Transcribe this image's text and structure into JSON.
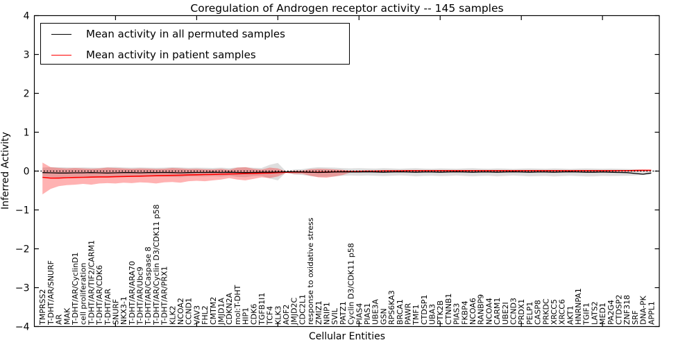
{
  "chart_data": {
    "type": "line",
    "title": "Coregulation of Androgen receptor activity -- 145 samples",
    "xlabel": "Cellular Entities",
    "ylabel": "Inferred Activity",
    "ylim": [
      -4,
      4
    ],
    "yticks": [
      -4,
      -3,
      -2,
      -1,
      0,
      1,
      2,
      3,
      4
    ],
    "x_major_tick_positions": [
      10,
      20,
      30,
      40,
      50,
      60,
      70
    ],
    "grid": false,
    "legend": {
      "position": "upper left",
      "entries": [
        {
          "label": "Mean activity in all permuted samples",
          "color": "#000000"
        },
        {
          "label": "Mean activity in patient samples",
          "color": "#ff0000"
        }
      ]
    },
    "reference_line": {
      "y": 0,
      "style": "dotted",
      "color": "#000000"
    },
    "colors": {
      "patient_line": "#ff0000",
      "permuted_line": "#000000",
      "patient_band": "rgba(255,0,0,0.30)",
      "permuted_band": "rgba(0,0,0,0.13)"
    },
    "categories": [
      "TMPRSS2",
      "T-DHT/AR/SNURF",
      "AR",
      "MAK",
      "T-DHT/AR/CyclinD1",
      "cell proliferation",
      "T-DHT/AR/TIF2/CARM1",
      "T-DHT/AR/CDK6",
      "T-DHT/AR",
      "SNURF",
      "NKX3-1",
      "T-DHT/AR/ARA70",
      "T-DHT/AR/Ubc9",
      "T-DHT/AR/Caspase 8",
      "T-DHT/AR/Cyclin D3/CDK11 p58",
      "T-DHT/AR/PRX1",
      "KLK2",
      "NCOA2",
      "CCND1",
      "VAV3",
      "FHL2",
      "CMTM2",
      "JMJD1A",
      "CDKN2A",
      "mol:T-DHT",
      "HIP1",
      "CDK6",
      "TGFB1I1",
      "TCF4",
      "KLK3",
      "AOF2",
      "JMJD2C",
      "CDC2L1",
      "response to oxidative stress",
      "ZMIZ1",
      "NRIP1",
      "SVIL",
      "PATZ1",
      "Cyclin D3/CDK11 p58",
      "PIAS4",
      "PIAS1",
      "UBE3A",
      "GSN",
      "RPS6KA3",
      "BRCA1",
      "PAWR",
      "TMF1",
      "CTDSP1",
      "UBA3",
      "PTK2B",
      "CTNNB1",
      "PIAS3",
      "FKBP4",
      "NCOA6",
      "RANBP9",
      "NCOA4",
      "CARM1",
      "UBE2I",
      "CCND3",
      "PRDX1",
      "PELP1",
      "CASP8",
      "PRKDC",
      "XRCC5",
      "XRCC6",
      "AKT1",
      "HNRNPA1",
      "TGIF1",
      "LATS2",
      "MED1",
      "PA2G4",
      "CTDSP2",
      "ZNF318",
      "SRF",
      "DNA-PK",
      "APPL1"
    ],
    "series": [
      {
        "name": "Mean activity in all permuted samples",
        "style": "solid",
        "color": "#000000",
        "values": [
          -0.04,
          -0.045,
          -0.05,
          -0.05,
          -0.045,
          -0.045,
          -0.04,
          -0.045,
          -0.05,
          -0.045,
          -0.04,
          -0.04,
          -0.045,
          -0.04,
          -0.04,
          -0.035,
          -0.04,
          -0.045,
          -0.04,
          -0.035,
          -0.035,
          -0.03,
          -0.035,
          -0.03,
          -0.035,
          -0.04,
          -0.035,
          -0.03,
          -0.03,
          -0.025,
          -0.02,
          -0.02,
          -0.025,
          -0.03,
          -0.035,
          -0.03,
          -0.025,
          -0.02,
          -0.025,
          -0.025,
          -0.02,
          -0.025,
          -0.03,
          -0.025,
          -0.02,
          -0.025,
          -0.03,
          -0.025,
          -0.025,
          -0.03,
          -0.025,
          -0.02,
          -0.025,
          -0.03,
          -0.025,
          -0.025,
          -0.03,
          -0.025,
          -0.02,
          -0.025,
          -0.03,
          -0.025,
          -0.025,
          -0.03,
          -0.025,
          -0.02,
          -0.025,
          -0.03,
          -0.03,
          -0.025,
          -0.03,
          -0.035,
          -0.04,
          -0.06,
          -0.08,
          -0.05
        ]
      },
      {
        "name": "Mean activity in patient samples",
        "style": "solid",
        "color": "#ff0000",
        "values": [
          -0.16,
          -0.18,
          -0.18,
          -0.17,
          -0.165,
          -0.16,
          -0.155,
          -0.15,
          -0.15,
          -0.145,
          -0.14,
          -0.135,
          -0.13,
          -0.125,
          -0.12,
          -0.115,
          -0.11,
          -0.105,
          -0.1,
          -0.095,
          -0.09,
          -0.085,
          -0.08,
          -0.075,
          -0.07,
          -0.065,
          -0.06,
          -0.055,
          -0.05,
          -0.04,
          -0.03,
          -0.025,
          -0.025,
          -0.03,
          -0.03,
          -0.025,
          -0.02,
          -0.015,
          -0.01,
          -0.005,
          0.0,
          0.0,
          0.005,
          0.005,
          0.005,
          0.01,
          0.01,
          0.01,
          0.01,
          0.01,
          0.01,
          0.01,
          0.01,
          0.01,
          0.01,
          0.01,
          0.01,
          0.01,
          0.01,
          0.01,
          0.01,
          0.01,
          0.01,
          0.01,
          0.01,
          0.01,
          0.01,
          0.01,
          0.01,
          0.01,
          0.01,
          0.01,
          0.01,
          0.015,
          0.02,
          0.02
        ]
      }
    ],
    "bands": [
      {
        "name": "Permuted samples spread",
        "color": "rgba(0,0,0,0.13)",
        "upper": [
          0.09,
          0.1,
          0.1,
          0.095,
          0.09,
          0.095,
          0.09,
          0.085,
          0.1,
          0.105,
          0.095,
          0.09,
          0.095,
          0.09,
          0.085,
          0.09,
          0.1,
          0.095,
          0.085,
          0.09,
          0.085,
          0.08,
          0.09,
          0.075,
          0.095,
          0.1,
          0.085,
          0.08,
          0.16,
          0.21,
          -0.005,
          0.04,
          0.05,
          0.08,
          0.1,
          0.095,
          0.09,
          0.075,
          0.07,
          0.075,
          0.07,
          0.065,
          0.075,
          0.07,
          0.06,
          0.07,
          0.075,
          0.065,
          0.06,
          0.07,
          0.065,
          0.06,
          0.07,
          0.075,
          0.065,
          0.06,
          0.07,
          0.065,
          0.055,
          0.065,
          0.07,
          0.065,
          0.06,
          0.07,
          0.065,
          0.055,
          0.065,
          0.07,
          0.065,
          0.06,
          0.065,
          0.06,
          0.055,
          0.05,
          0.04,
          0.03
        ],
        "lower": [
          -0.14,
          -0.15,
          -0.16,
          -0.15,
          -0.145,
          -0.15,
          -0.145,
          -0.14,
          -0.155,
          -0.15,
          -0.145,
          -0.14,
          -0.15,
          -0.145,
          -0.14,
          -0.145,
          -0.15,
          -0.155,
          -0.14,
          -0.135,
          -0.14,
          -0.13,
          -0.14,
          -0.12,
          -0.15,
          -0.155,
          -0.13,
          -0.125,
          -0.19,
          -0.24,
          -0.035,
          -0.09,
          -0.1,
          -0.13,
          -0.15,
          -0.145,
          -0.14,
          -0.12,
          -0.115,
          -0.12,
          -0.115,
          -0.12,
          -0.13,
          -0.12,
          -0.11,
          -0.12,
          -0.135,
          -0.125,
          -0.12,
          -0.13,
          -0.125,
          -0.115,
          -0.125,
          -0.135,
          -0.125,
          -0.12,
          -0.135,
          -0.125,
          -0.115,
          -0.125,
          -0.135,
          -0.13,
          -0.125,
          -0.14,
          -0.13,
          -0.12,
          -0.13,
          -0.14,
          -0.135,
          -0.125,
          -0.13,
          -0.125,
          -0.12,
          -0.115,
          -0.1,
          -0.08
        ]
      },
      {
        "name": "Patient samples spread",
        "color": "rgba(255,0,0,0.30)",
        "upper": [
          0.22,
          0.1,
          0.08,
          0.07,
          0.08,
          0.07,
          0.06,
          0.07,
          0.09,
          0.08,
          0.07,
          0.06,
          0.07,
          0.065,
          0.055,
          0.06,
          0.08,
          0.07,
          0.055,
          0.06,
          0.05,
          0.045,
          0.06,
          0.035,
          0.09,
          0.1,
          0.06,
          0.04,
          0.09,
          0.07,
          -0.01,
          0.01,
          0.015,
          0.05,
          0.06,
          0.055,
          0.045,
          0.03,
          0.005,
          0.01,
          0.015,
          0.015,
          0.02,
          0.02,
          0.02,
          0.025,
          0.025,
          0.025,
          0.025,
          0.025,
          0.025,
          0.025,
          0.025,
          0.025,
          0.025,
          0.025,
          0.025,
          0.025,
          0.025,
          0.025,
          0.025,
          0.025,
          0.025,
          0.025,
          0.025,
          0.025,
          0.025,
          0.025,
          0.025,
          0.025,
          0.025,
          0.025,
          0.025,
          0.03,
          0.035,
          0.035
        ],
        "lower": [
          -0.6,
          -0.46,
          -0.39,
          -0.36,
          -0.35,
          -0.33,
          -0.35,
          -0.32,
          -0.31,
          -0.32,
          -0.3,
          -0.31,
          -0.29,
          -0.3,
          -0.32,
          -0.29,
          -0.28,
          -0.3,
          -0.26,
          -0.25,
          -0.26,
          -0.24,
          -0.22,
          -0.18,
          -0.22,
          -0.24,
          -0.2,
          -0.16,
          -0.18,
          -0.14,
          -0.05,
          -0.07,
          -0.07,
          -0.12,
          -0.16,
          -0.17,
          -0.14,
          -0.1,
          -0.03,
          -0.025,
          -0.02,
          -0.02,
          -0.015,
          -0.015,
          -0.015,
          -0.01,
          -0.01,
          -0.01,
          -0.01,
          -0.01,
          -0.01,
          -0.01,
          -0.01,
          -0.01,
          -0.01,
          -0.01,
          -0.01,
          -0.01,
          -0.01,
          -0.01,
          -0.01,
          -0.01,
          -0.01,
          -0.01,
          -0.01,
          -0.01,
          -0.01,
          -0.01,
          -0.01,
          -0.01,
          -0.01,
          -0.01,
          -0.01,
          -0.005,
          0.0,
          0.005
        ]
      }
    ]
  }
}
